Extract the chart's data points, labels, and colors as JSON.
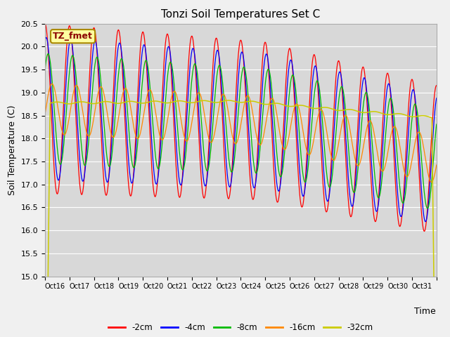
{
  "title": "Tonzi Soil Temperatures Set C",
  "xlabel": "Time",
  "ylabel": "Soil Temperature (C)",
  "ylim": [
    15.0,
    20.5
  ],
  "yticks": [
    15.0,
    15.5,
    16.0,
    16.5,
    17.0,
    17.5,
    18.0,
    18.5,
    19.0,
    19.5,
    20.0,
    20.5
  ],
  "xtick_labels": [
    "Oct 16",
    "Oct 17",
    "Oct 18",
    "Oct 19",
    "Oct 20",
    "Oct 21",
    "Oct 22",
    "Oct 23",
    "Oct 24",
    "Oct 25",
    "Oct 26",
    "Oct 27",
    "Oct 28",
    "Oct 29",
    "Oct 30",
    "Oct 31"
  ],
  "label_annotation": "TZ_fmet",
  "series_labels": [
    "-2cm",
    "-4cm",
    "-8cm",
    "-16cm",
    "-32cm"
  ],
  "series_colors": [
    "#ff0000",
    "#0000ff",
    "#00bb00",
    "#ff8800",
    "#cccc00"
  ],
  "fig_facecolor": "#f0f0f0",
  "ax_facecolor": "#d8d8d8",
  "title_fontsize": 11,
  "axis_label_fontsize": 9,
  "tick_fontsize": 8
}
